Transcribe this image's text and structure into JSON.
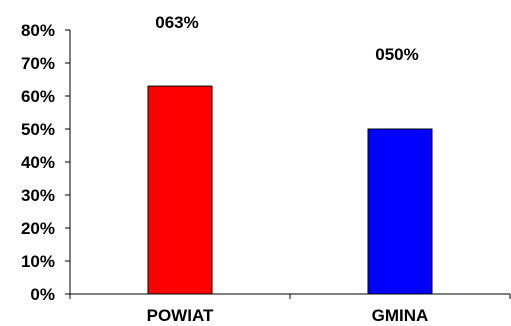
{
  "chart_data": {
    "type": "bar",
    "categories": [
      "POWIAT",
      "GMINA"
    ],
    "values": [
      0.63,
      0.5
    ],
    "data_labels": [
      "063%",
      "050%"
    ],
    "colors": [
      "#ff0000",
      "#0000ff"
    ],
    "y_tick_labels": [
      "0%",
      "10%",
      "20%",
      "30%",
      "40%",
      "50%",
      "60%",
      "70%",
      "80%"
    ],
    "ylim": [
      0,
      0.8
    ],
    "grid": false,
    "legend": "none"
  }
}
